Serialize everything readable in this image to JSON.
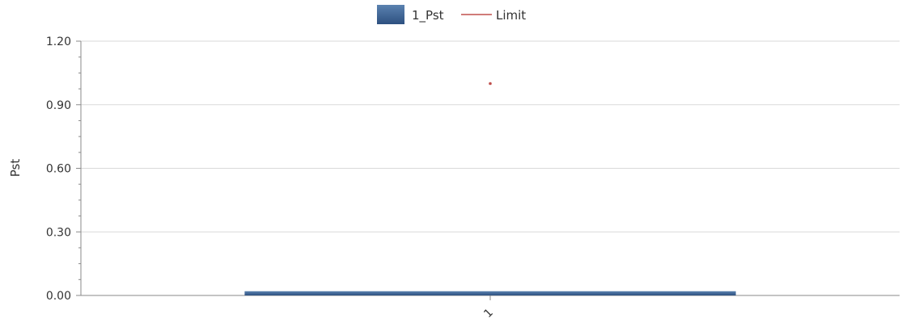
{
  "chart_data": {
    "type": "bar",
    "categories": [
      "1"
    ],
    "series": [
      {
        "name": "1_Pst",
        "kind": "bar",
        "values": [
          0.02
        ],
        "color": "#3d6693"
      },
      {
        "name": "Limit",
        "kind": "line",
        "values": [
          1.0
        ],
        "color": "#c0504d"
      }
    ],
    "xlabel": "",
    "ylabel": "Pst",
    "ylim": [
      0,
      1.2
    ],
    "yticks": [
      "0.00",
      "0.30",
      "0.60",
      "0.90",
      "1.20"
    ],
    "grid": true,
    "legend_position": "top-center"
  }
}
